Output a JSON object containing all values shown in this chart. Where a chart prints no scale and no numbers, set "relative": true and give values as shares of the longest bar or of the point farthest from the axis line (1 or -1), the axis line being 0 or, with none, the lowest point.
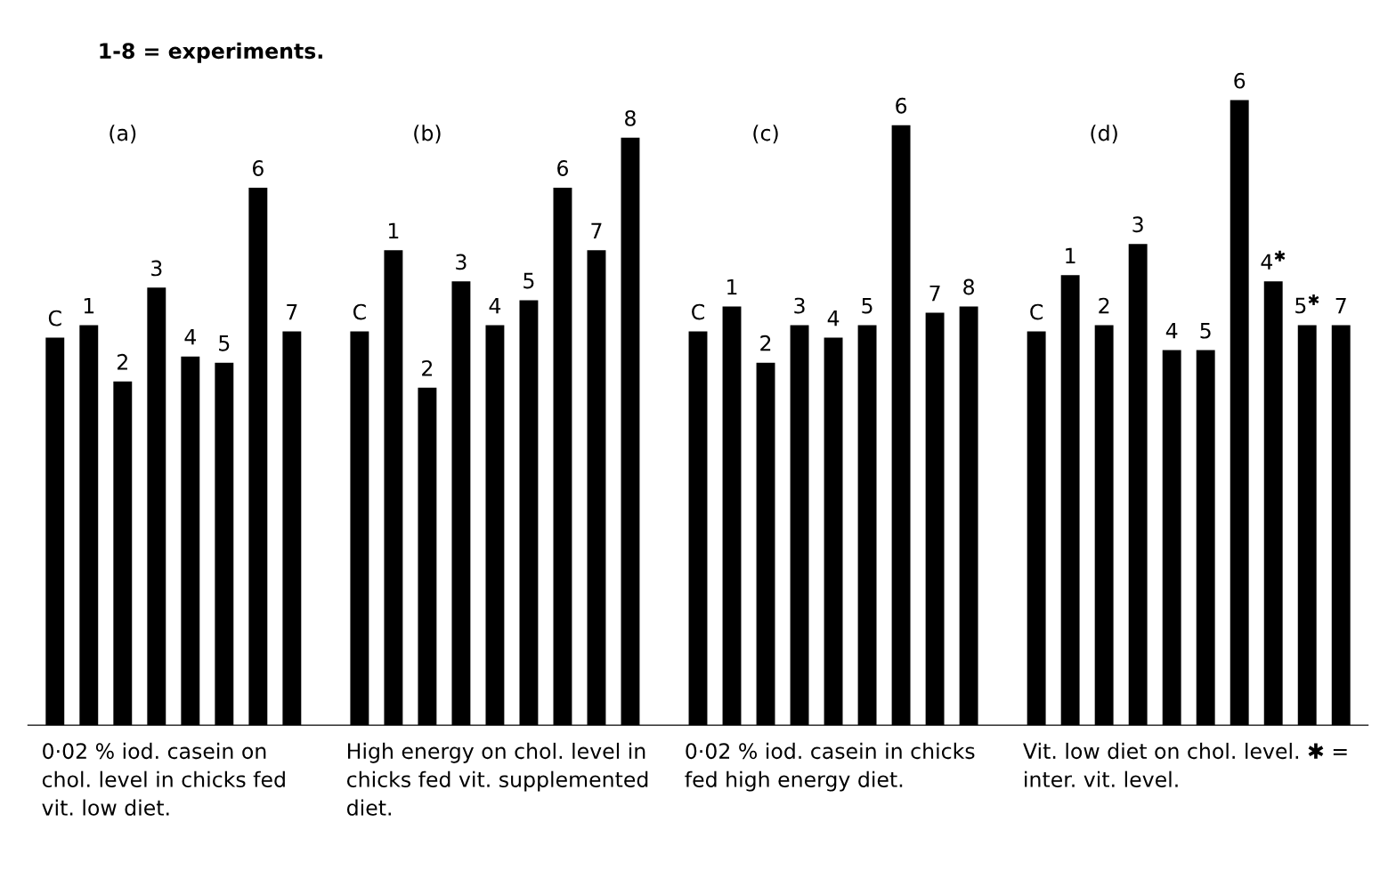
{
  "chart_data": {
    "type": "bar",
    "relative": true,
    "color": "#000000",
    "legend": false,
    "categories": [
      "C",
      "1",
      "2",
      "3",
      "4",
      "5",
      "6",
      "7",
      null,
      "C",
      "1",
      "2",
      "3",
      "4",
      "5",
      "6",
      "7",
      "8",
      null,
      "C",
      "1",
      "2",
      "3",
      "4",
      "5",
      "6",
      "7",
      "8",
      null,
      "C",
      "1",
      "2",
      "3",
      "4",
      "5",
      "6",
      "4$^{✱}$",
      "5$^{✱}$",
      "7"
    ],
    "values": [
      0.62,
      0.64,
      0.55,
      0.7,
      0.59,
      0.58,
      0.86,
      0.63,
      null,
      0.63,
      0.76,
      0.54,
      0.71,
      0.64,
      0.68,
      0.86,
      0.76,
      0.94,
      null,
      0.63,
      0.67,
      0.58,
      0.64,
      0.62,
      0.64,
      0.96,
      0.66,
      0.67,
      null,
      0.63,
      0.72,
      0.64,
      0.77,
      0.6,
      0.6,
      1,
      0.71,
      0.64,
      0.64
    ],
    "annotations": [
      "1-8 = experiments.",
      "(a)",
      "(b)",
      "(c)",
      "(d)",
      "0·02 % iod. casein on chol. level in chicks fed vit. low diet.",
      "High energy on chol. level in chicks fed vit. supplemented diet.",
      "0·02 % iod. casein in chicks fed high energy diet.",
      "Vit. low diet on chol. level. ✱ = inter. vit. level."
    ]
  }
}
